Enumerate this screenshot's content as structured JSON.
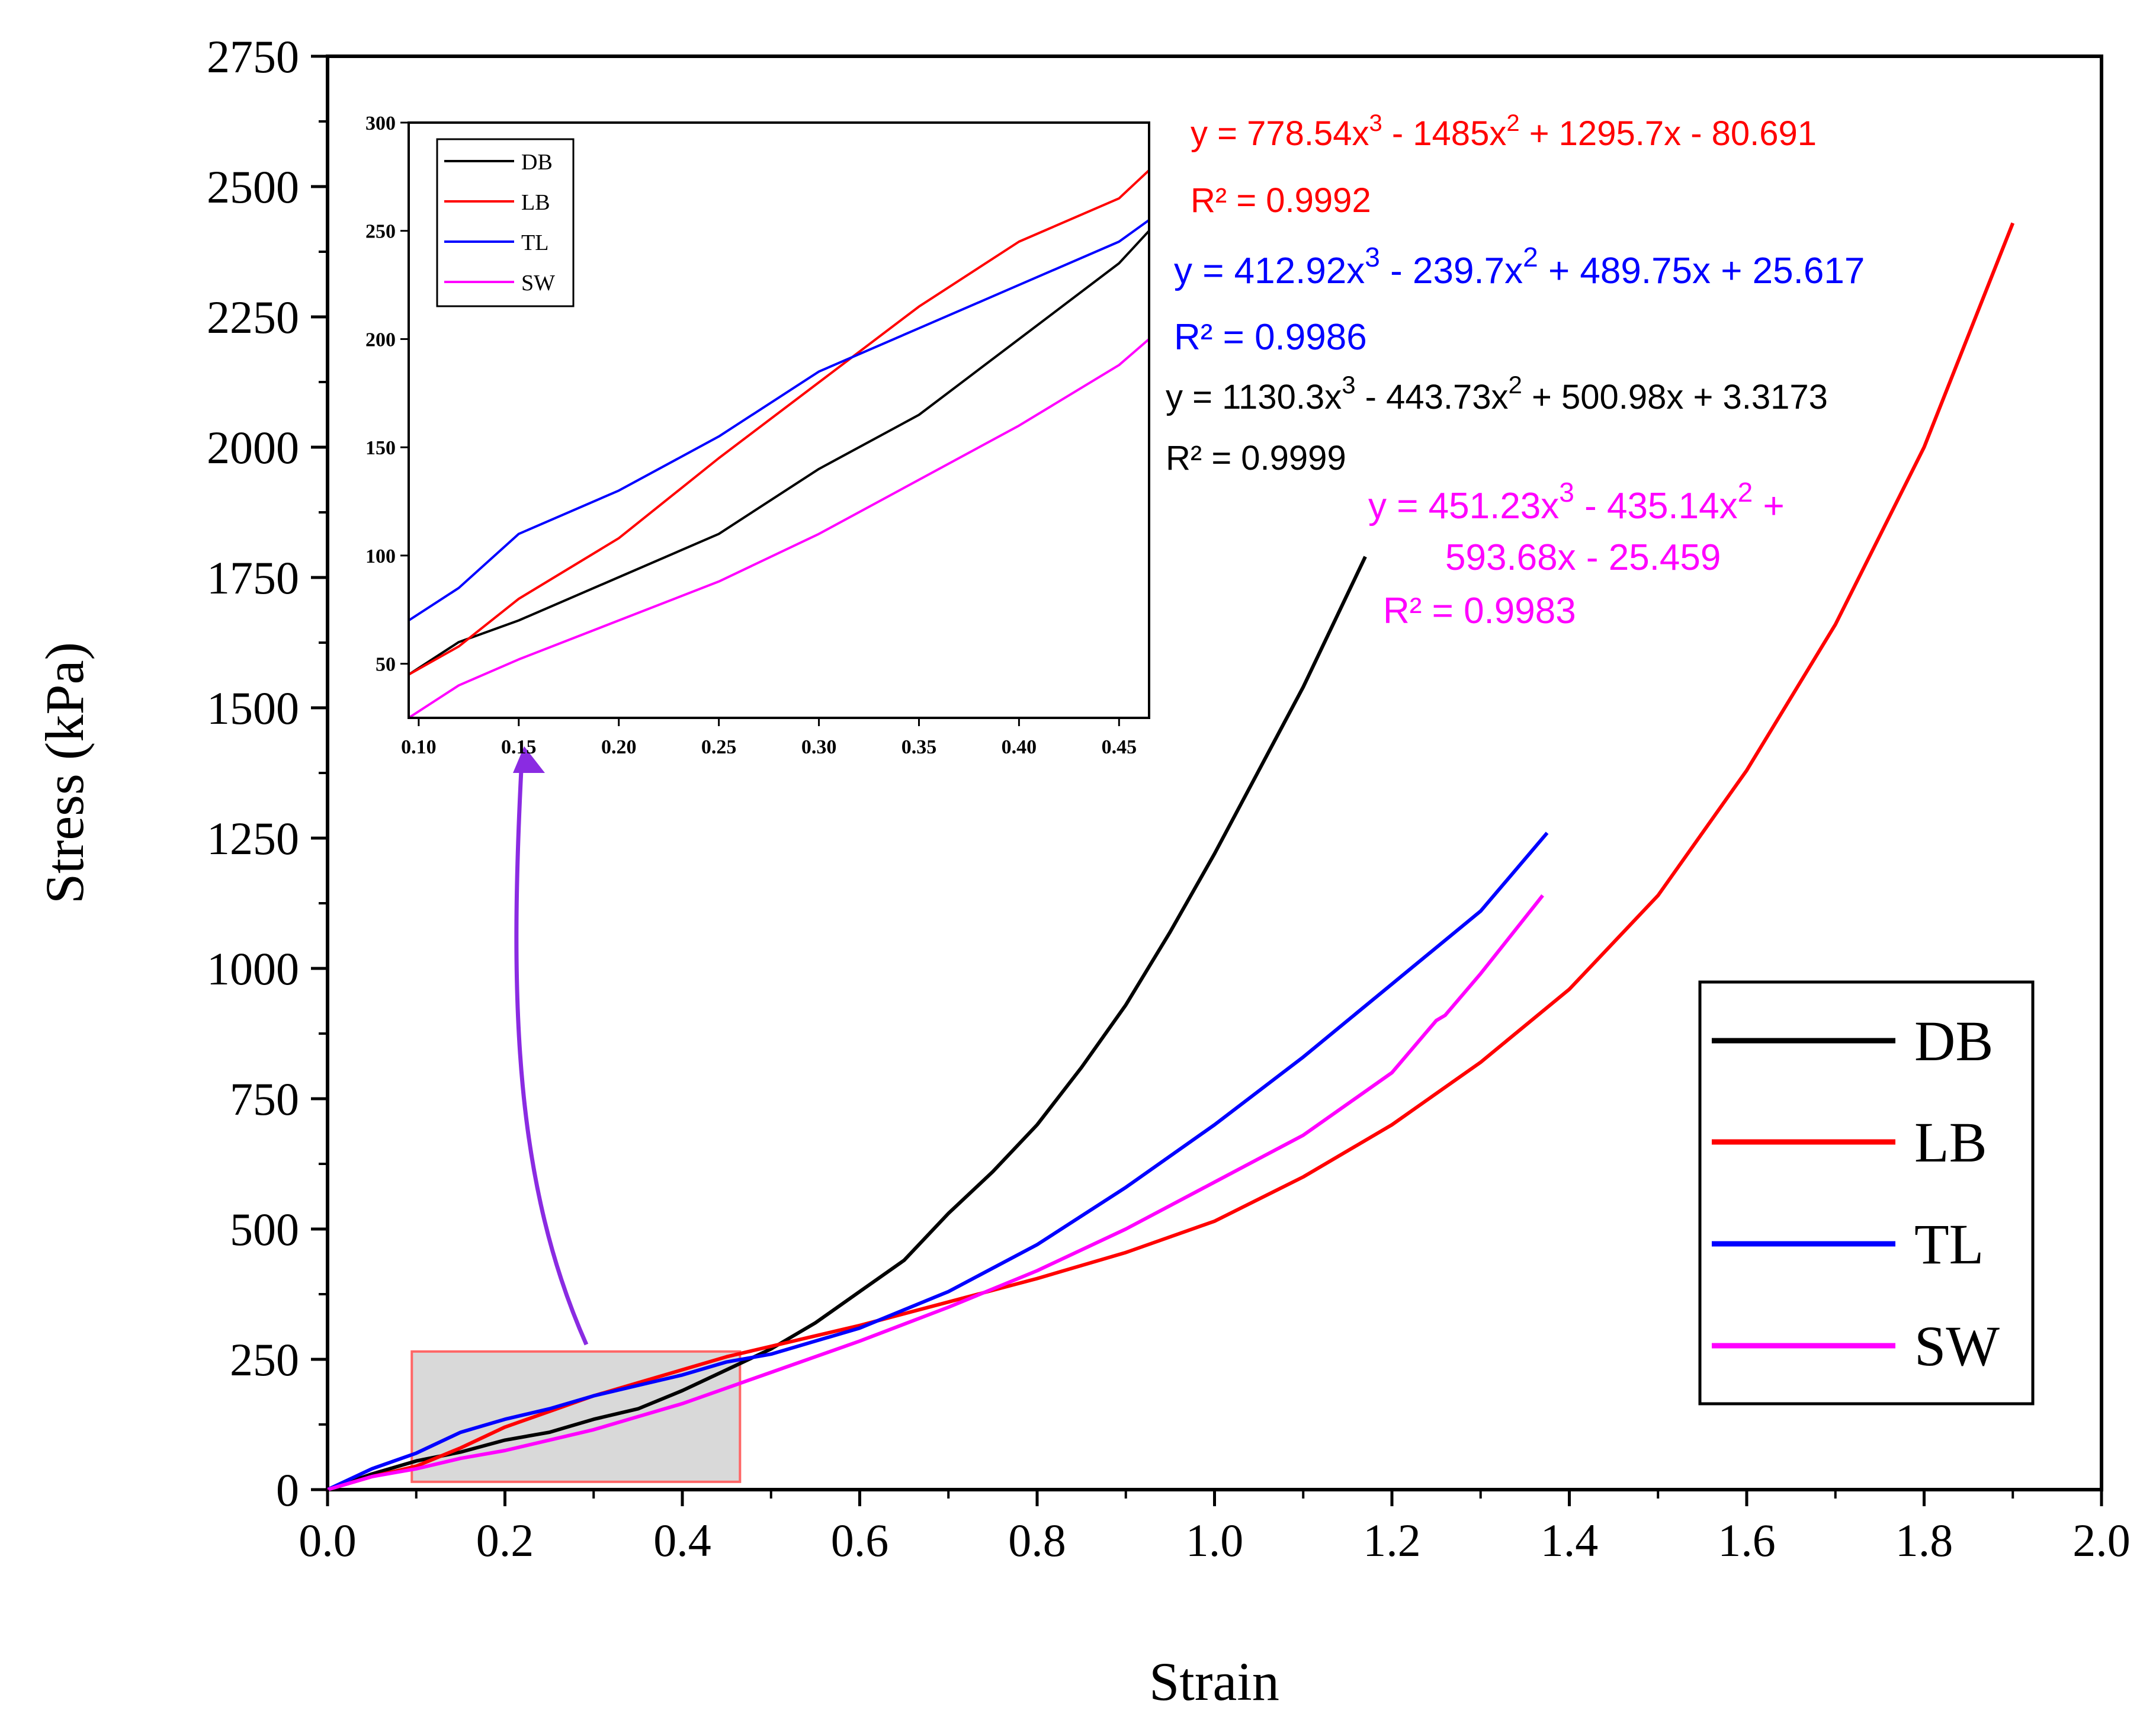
{
  "chart_data": [
    {
      "type": "line",
      "xlabel": "Strain",
      "ylabel": "Stress (kPa)",
      "xlim": [
        0,
        2.0
      ],
      "ylim": [
        0,
        2750
      ],
      "xticks": [
        "0.0",
        "0.2",
        "0.4",
        "0.6",
        "0.8",
        "1.0",
        "1.2",
        "1.4",
        "1.6",
        "1.8",
        "2.0"
      ],
      "yticks": [
        "0",
        "250",
        "500",
        "750",
        "1000",
        "1250",
        "1500",
        "1750",
        "2000",
        "2250",
        "2500",
        "2750"
      ],
      "legend_position": "bottom-right",
      "series": [
        {
          "name": "DB",
          "color": "#000000",
          "x": [
            0,
            0.05,
            0.1,
            0.15,
            0.2,
            0.25,
            0.3,
            0.35,
            0.4,
            0.45,
            0.5,
            0.55,
            0.6,
            0.65,
            0.7,
            0.75,
            0.8,
            0.85,
            0.9,
            0.95,
            1.0,
            1.05,
            1.1,
            1.17
          ],
          "y": [
            0,
            30,
            55,
            72,
            95,
            110,
            135,
            155,
            190,
            230,
            270,
            320,
            380,
            440,
            530,
            610,
            700,
            810,
            930,
            1070,
            1220,
            1380,
            1540,
            1790
          ]
        },
        {
          "name": "LB",
          "color": "#ff0000",
          "x": [
            0,
            0.05,
            0.1,
            0.15,
            0.2,
            0.25,
            0.3,
            0.35,
            0.4,
            0.45,
            0.5,
            0.6,
            0.7,
            0.8,
            0.9,
            1.0,
            1.1,
            1.2,
            1.3,
            1.4,
            1.5,
            1.6,
            1.7,
            1.8,
            1.9
          ],
          "y": [
            0,
            25,
            45,
            80,
            120,
            150,
            180,
            205,
            230,
            255,
            275,
            315,
            360,
            405,
            455,
            515,
            600,
            700,
            820,
            960,
            1140,
            1380,
            1660,
            2000,
            2430
          ]
        },
        {
          "name": "TL",
          "color": "#0000ff",
          "x": [
            0,
            0.05,
            0.1,
            0.15,
            0.2,
            0.25,
            0.3,
            0.35,
            0.4,
            0.45,
            0.5,
            0.6,
            0.7,
            0.8,
            0.9,
            1.0,
            1.1,
            1.2,
            1.3,
            1.375
          ],
          "y": [
            0,
            40,
            70,
            110,
            135,
            155,
            180,
            200,
            220,
            245,
            260,
            310,
            380,
            470,
            580,
            700,
            830,
            970,
            1110,
            1260
          ]
        },
        {
          "name": "SW",
          "color": "#ff00ff",
          "x": [
            0,
            0.05,
            0.1,
            0.15,
            0.2,
            0.25,
            0.3,
            0.35,
            0.4,
            0.45,
            0.5,
            0.6,
            0.7,
            0.8,
            0.9,
            1.0,
            1.1,
            1.2,
            1.25,
            1.26,
            1.3,
            1.37
          ],
          "y": [
            0,
            25,
            40,
            60,
            75,
            95,
            115,
            140,
            165,
            195,
            225,
            285,
            350,
            420,
            500,
            590,
            680,
            800,
            900,
            910,
            990,
            1140
          ]
        }
      ],
      "annotations": [
        {
          "series": "LB",
          "color": "#ff0000",
          "equation_prefix": "y = 778.54x",
          "equation_mid1": " - 1485x",
          "equation_mid2": " + 1295.7x - 80.691",
          "r2": "R² = 0.9992"
        },
        {
          "series": "TL",
          "color": "#0000ff",
          "equation_prefix": "y = 412.92x",
          "equation_mid1": " - 239.7x",
          "equation_mid2": " + 489.75x + 25.617",
          "r2": "R² = 0.9986"
        },
        {
          "series": "DB",
          "color": "#000000",
          "equation_prefix": "y = 1130.3x",
          "equation_mid1": " - 443.73x",
          "equation_mid2": " + 500.98x + 3.3173",
          "r2": "R² = 0.9999"
        },
        {
          "series": "SW",
          "color": "#ff00ff",
          "equation_prefix": "y = 451.23x",
          "equation_mid1": " - 435.14x",
          "equation_mid2": " +",
          "equation_line2": "593.68x - 25.459",
          "r2": "R² = 0.9983"
        }
      ],
      "superscripts": {
        "cube": "3",
        "square": "2"
      },
      "zoom_region": {
        "x": [
          0.095,
          0.465
        ],
        "y": [
          15,
          265
        ]
      }
    },
    {
      "type": "line",
      "role": "inset",
      "xlim": [
        0.095,
        0.465
      ],
      "ylim": [
        25,
        300
      ],
      "xticks": [
        "0.10",
        "0.15",
        "0.20",
        "0.25",
        "0.30",
        "0.35",
        "0.40",
        "0.45"
      ],
      "yticks": [
        "50",
        "100",
        "150",
        "200",
        "250",
        "300"
      ],
      "legend_position": "top-left",
      "legend": [
        "DB",
        "LB",
        "TL",
        "SW"
      ],
      "series": [
        {
          "name": "DB",
          "color": "#000000",
          "x": [
            0.095,
            0.12,
            0.15,
            0.2,
            0.25,
            0.3,
            0.35,
            0.4,
            0.45,
            0.465
          ],
          "y": [
            45,
            60,
            70,
            90,
            110,
            140,
            165,
            200,
            235,
            250
          ]
        },
        {
          "name": "LB",
          "color": "#ff0000",
          "x": [
            0.095,
            0.12,
            0.15,
            0.2,
            0.25,
            0.3,
            0.35,
            0.4,
            0.45,
            0.465
          ],
          "y": [
            45,
            58,
            80,
            108,
            145,
            180,
            215,
            245,
            265,
            278
          ]
        },
        {
          "name": "TL",
          "color": "#0000ff",
          "x": [
            0.095,
            0.12,
            0.15,
            0.2,
            0.25,
            0.3,
            0.35,
            0.4,
            0.45,
            0.465
          ],
          "y": [
            70,
            85,
            110,
            130,
            155,
            185,
            205,
            225,
            245,
            255
          ]
        },
        {
          "name": "SW",
          "color": "#ff00ff",
          "x": [
            0.095,
            0.12,
            0.15,
            0.2,
            0.25,
            0.3,
            0.35,
            0.4,
            0.45,
            0.465
          ],
          "y": [
            25,
            40,
            52,
            70,
            88,
            110,
            135,
            160,
            188,
            200
          ]
        }
      ]
    }
  ]
}
